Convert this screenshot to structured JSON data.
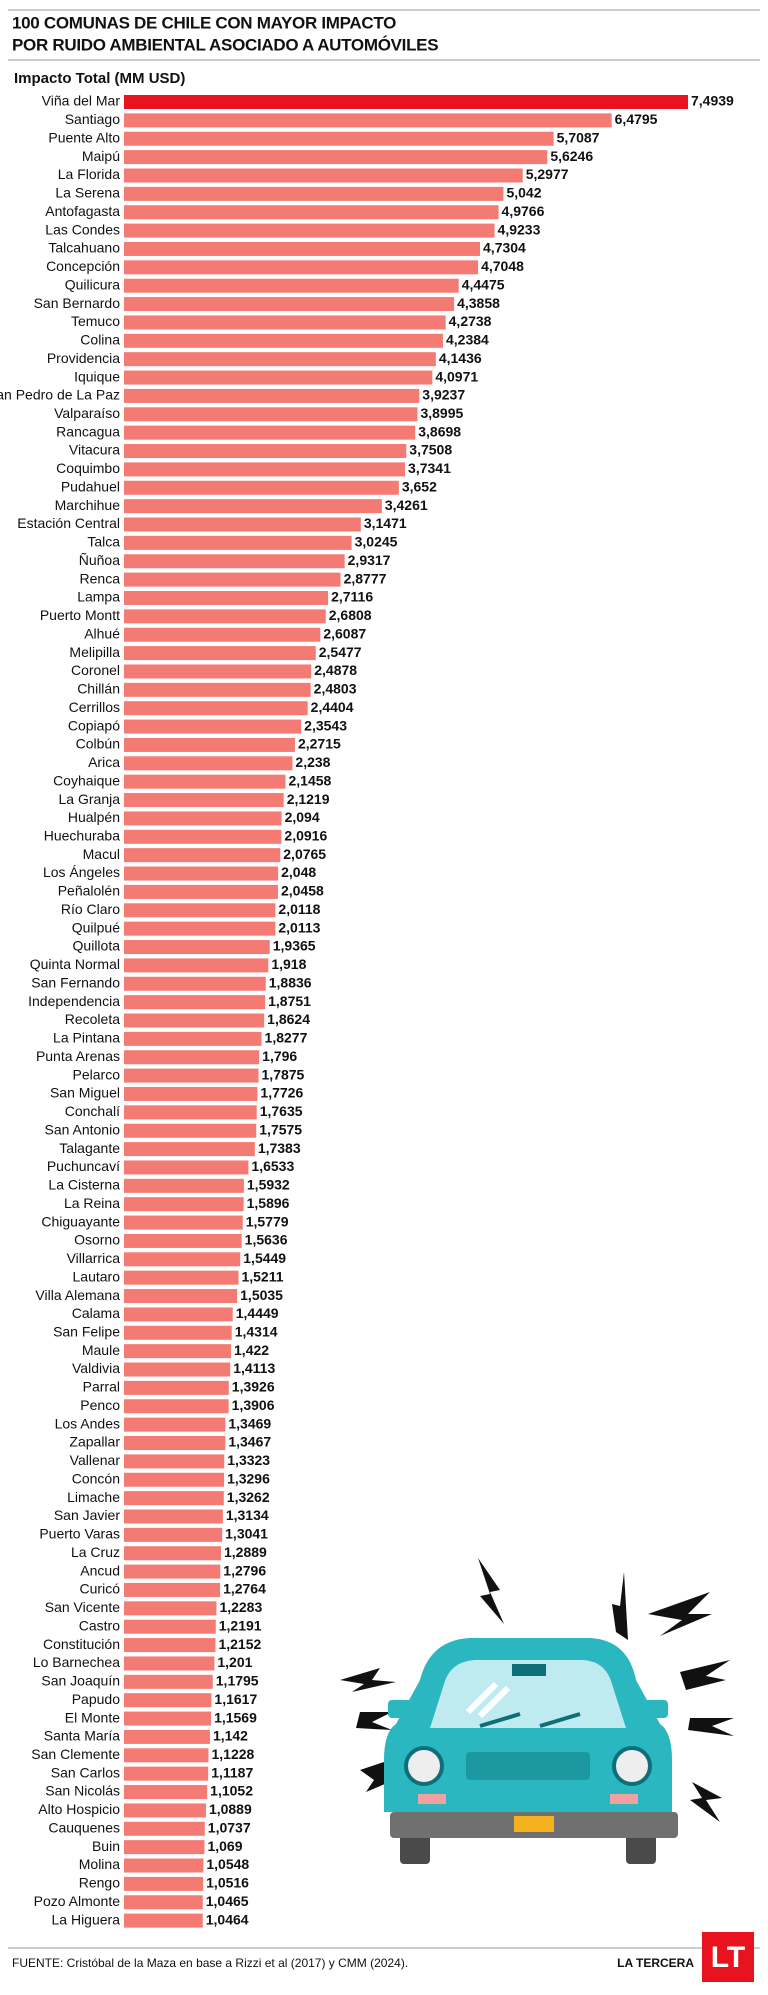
{
  "chart_data": {
    "type": "hbar",
    "title": [
      "100 COMUNAS DE CHILE CON MAYOR IMPACTO",
      "POR RUIDO AMBIENTAL ASOCIADO A AUTOMÓVILES"
    ],
    "axis_label": "Impacto Total (MM USD)",
    "source": "FUENTE: Cristóbal de la Maza en base a Rizzi et al (2017) y CMM (2024).",
    "brand": "LA TERCERA",
    "logo": "LT",
    "categories": [
      "Viña del Mar",
      "Santiago",
      "Puente Alto",
      "Maipú",
      "La Florida",
      "La Serena",
      "Antofagasta",
      "Las Condes",
      "Talcahuano",
      "Concepción",
      "Quilicura",
      "San Bernardo",
      "Temuco",
      "Colina",
      "Providencia",
      "Iquique",
      "San Pedro de La Paz",
      "Valparaíso",
      "Rancagua",
      "Vitacura",
      "Coquimbo",
      "Pudahuel",
      "Marchihue",
      "Estación Central",
      "Talca",
      "Ñuñoa",
      "Renca",
      "Lampa",
      "Puerto Montt",
      "Alhué",
      "Melipilla",
      "Coronel",
      "Chillán",
      "Cerrillos",
      "Copiapó",
      "Colbún",
      "Arica",
      "Coyhaique",
      "La Granja",
      "Hualpén",
      "Huechuraba",
      "Macul",
      "Los Ángeles",
      "Peñalolén",
      "Río Claro",
      "Quilpué",
      "Quillota",
      "Quinta Normal",
      "San Fernando",
      "Independencia",
      "Recoleta",
      "La Pintana",
      "Punta Arenas",
      "Pelarco",
      "San Miguel",
      "Conchalí",
      "San Antonio",
      "Talagante",
      "Puchuncaví",
      "La Cisterna",
      "La Reina",
      "Chiguayante",
      "Osorno",
      "Villarrica",
      "Lautaro",
      "Villa Alemana",
      "Calama",
      "San Felipe",
      "Maule",
      "Valdivia",
      "Parral",
      "Penco",
      "Los Andes",
      "Zapallar",
      "Vallenar",
      "Concón",
      "Limache",
      "San Javier",
      "Puerto Varas",
      "La Cruz",
      "Ancud",
      "Curicó",
      "San Vicente",
      "Castro",
      "Constitución",
      "Lo Barnechea",
      "San Joaquín",
      "Papudo",
      "El Monte",
      "Santa María",
      "San Clemente",
      "San Carlos",
      "San Nicolás",
      "Alto Hospicio",
      "Cauquenes",
      "Buin",
      "Molina",
      "Rengo",
      "Pozo Almonte",
      "La Higuera"
    ],
    "values": [
      7.4939,
      6.4795,
      5.7087,
      5.6246,
      5.2977,
      5.042,
      4.9766,
      4.9233,
      4.7304,
      4.7048,
      4.4475,
      4.3858,
      4.2738,
      4.2384,
      4.1436,
      4.0971,
      3.9237,
      3.8995,
      3.8698,
      3.7508,
      3.7341,
      3.652,
      3.4261,
      3.1471,
      3.0245,
      2.9317,
      2.8777,
      2.7116,
      2.6808,
      2.6087,
      2.5477,
      2.4878,
      2.4803,
      2.4404,
      2.3543,
      2.2715,
      2.238,
      2.1458,
      2.1219,
      2.094,
      2.0916,
      2.0765,
      2.048,
      2.0458,
      2.0118,
      2.0113,
      1.9365,
      1.918,
      1.8836,
      1.8751,
      1.8624,
      1.8277,
      1.796,
      1.7875,
      1.7726,
      1.7635,
      1.7575,
      1.7383,
      1.6533,
      1.5932,
      1.5896,
      1.5779,
      1.5636,
      1.5449,
      1.5211,
      1.5035,
      1.4449,
      1.4314,
      1.422,
      1.4113,
      1.3926,
      1.3906,
      1.3469,
      1.3467,
      1.3323,
      1.3296,
      1.3262,
      1.3134,
      1.3041,
      1.2889,
      1.2796,
      1.2764,
      1.2283,
      1.2191,
      1.2152,
      1.201,
      1.1795,
      1.1617,
      1.1569,
      1.142,
      1.1228,
      1.1187,
      1.1052,
      1.0889,
      1.0737,
      1.069,
      1.0548,
      1.0516,
      1.0465,
      1.0464
    ],
    "value_labels": [
      "7,4939",
      "6,4795",
      "5,7087",
      "5,6246",
      "5,2977",
      "5,042",
      "4,9766",
      "4,9233",
      "4,7304",
      "4,7048",
      "4,4475",
      "4,3858",
      "4,2738",
      "4,2384",
      "4,1436",
      "4,0971",
      "3,9237",
      "3,8995",
      "3,8698",
      "3,7508",
      "3,7341",
      "3,652",
      "3,4261",
      "3,1471",
      "3,0245",
      "2,9317",
      "2,8777",
      "2,7116",
      "2,6808",
      "2,6087",
      "2,5477",
      "2,4878",
      "2,4803",
      "2,4404",
      "2,3543",
      "2,2715",
      "2,238",
      "2,1458",
      "2,1219",
      "2,094",
      "2,0916",
      "2,0765",
      "2,048",
      "2,0458",
      "2,0118",
      "2,0113",
      "1,9365",
      "1,918",
      "1,8836",
      "1,8751",
      "1,8624",
      "1,8277",
      "1,796",
      "1,7875",
      "1,7726",
      "1,7635",
      "1,7575",
      "1,7383",
      "1,6533",
      "1,5932",
      "1,5896",
      "1,5779",
      "1,5636",
      "1,5449",
      "1,5211",
      "1,5035",
      "1,4449",
      "1,4314",
      "1,422",
      "1,4113",
      "1,3926",
      "1,3906",
      "1,3469",
      "1,3467",
      "1,3323",
      "1,3296",
      "1,3262",
      "1,3134",
      "1,3041",
      "1,2889",
      "1,2796",
      "1,2764",
      "1,2283",
      "1,2191",
      "1,2152",
      "1,201",
      "1,1795",
      "1,1617",
      "1,1569",
      "1,142",
      "1,1228",
      "1,1187",
      "1,1052",
      "1,0889",
      "1,0737",
      "1,069",
      "1,0548",
      "1,0516",
      "1,0465",
      "1,0464"
    ],
    "colors": [
      "#e8131f",
      "#f47b73",
      "#f47b73",
      "#f47b73",
      "#f47b73",
      "#f47b73",
      "#f47b73",
      "#f47b73",
      "#f47b73",
      "#f47b73",
      "#f47b73",
      "#f47b73",
      "#f47b73",
      "#f47b73",
      "#f47b73",
      "#f47b73",
      "#f47b73",
      "#f47b73",
      "#f47b73",
      "#f47b73",
      "#f47b73",
      "#f47b73",
      "#f47b73",
      "#f47b73",
      "#f47b73",
      "#f47b73",
      "#f47b73",
      "#f47b73",
      "#f47b73",
      "#f47b73",
      "#f47b73",
      "#f47b73",
      "#f47b73",
      "#f47b73",
      "#f47b73",
      "#f47b73",
      "#f47b73",
      "#f47b73",
      "#f47b73",
      "#f47b73",
      "#f47b73",
      "#f47b73",
      "#f47b73",
      "#f47b73",
      "#f47b73",
      "#f47b73",
      "#f47b73",
      "#f47b73",
      "#f47b73",
      "#f47b73",
      "#f47b73",
      "#f47b73",
      "#f47b73",
      "#f47b73",
      "#f47b73",
      "#f47b73",
      "#f47b73",
      "#f47b73",
      "#f47b73",
      "#f47b73",
      "#f47b73",
      "#f47b73",
      "#f47b73",
      "#f47b73",
      "#f47b73",
      "#f47b73",
      "#f47b73",
      "#f47b73",
      "#f47b73",
      "#f47b73",
      "#f47b73",
      "#f47b73",
      "#f47b73",
      "#f47b73",
      "#f47b73",
      "#f47b73",
      "#f47b73",
      "#f47b73",
      "#f47b73",
      "#f47b73",
      "#f47b73",
      "#f47b73",
      "#f47b73",
      "#f47b73",
      "#f47b73",
      "#f47b73",
      "#f47b73",
      "#f47b73",
      "#f47b73",
      "#f47b73",
      "#f47b73",
      "#f47b73",
      "#f47b73",
      "#f47b73",
      "#f47b73",
      "#f47b73",
      "#f47b73",
      "#f47b73",
      "#f47b73",
      "#f47b73"
    ]
  }
}
